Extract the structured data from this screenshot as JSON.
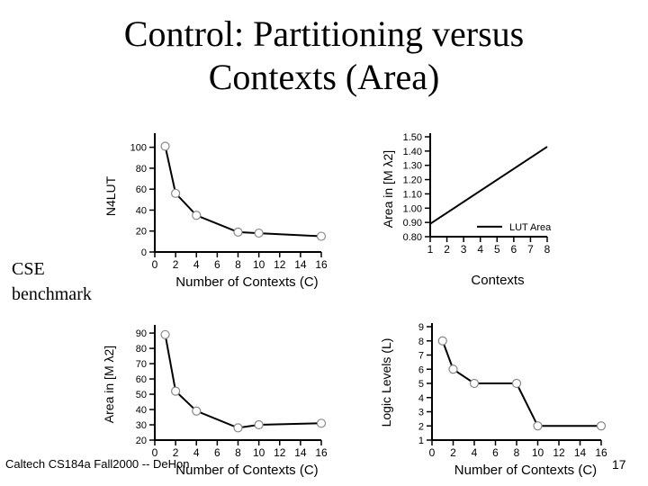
{
  "slide": {
    "title_line1": "Control: Partitioning versus",
    "title_line2": "Contexts (Area)",
    "side_label_line1": "CSE",
    "side_label_line2": "benchmark",
    "footer": "Caltech CS184a Fall2000 -- DeHon",
    "page_number": "17"
  },
  "chart_data": [
    {
      "type": "line",
      "ylabel": "N4LUT",
      "xlabel": "Number of Contexts (C)",
      "x_ticks": [
        "0",
        "2",
        "4",
        "6",
        "8",
        "10",
        "12",
        "14",
        "16"
      ],
      "y_ticks": [
        "0",
        "20",
        "40",
        "60",
        "80",
        "100"
      ],
      "xlim": [
        0,
        16
      ],
      "ylim": [
        0,
        110
      ],
      "markers": true,
      "series": [
        {
          "x": [
            1,
            2,
            4,
            8,
            10,
            16
          ],
          "y": [
            101,
            56,
            35,
            19,
            18,
            15
          ]
        }
      ]
    },
    {
      "type": "line",
      "ylabel": "Area in [M λ2]",
      "xlabel": "Contexts",
      "x_ticks": [
        "1",
        "2",
        "3",
        "4",
        "5",
        "6",
        "7",
        "8"
      ],
      "y_ticks": [
        "0.80",
        "0.90",
        "1.00",
        "1.10",
        "1.20",
        "1.30",
        "1.40",
        "1.50"
      ],
      "xlim": [
        1,
        8
      ],
      "ylim": [
        0.8,
        1.5
      ],
      "legend": "LUT Area",
      "legend_position": "right",
      "markers": false,
      "series": [
        {
          "name": "LUT Area",
          "x": [
            1,
            8
          ],
          "y": [
            0.89,
            1.43
          ]
        }
      ]
    },
    {
      "type": "line",
      "ylabel": "Area in [M λ2]",
      "xlabel": "Number of Contexts (C)",
      "x_ticks": [
        "0",
        "2",
        "4",
        "6",
        "8",
        "10",
        "12",
        "14",
        "16"
      ],
      "y_ticks": [
        "20",
        "30",
        "40",
        "50",
        "60",
        "70",
        "80",
        "90"
      ],
      "xlim": [
        0,
        16
      ],
      "ylim": [
        20,
        93
      ],
      "markers": true,
      "series": [
        {
          "x": [
            1,
            2,
            4,
            8,
            10,
            16
          ],
          "y": [
            89,
            52,
            39,
            28,
            30,
            31
          ]
        }
      ]
    },
    {
      "type": "line",
      "ylabel": "Logic Levels (L)",
      "xlabel": "Number of Contexts (C)",
      "x_ticks": [
        "0",
        "2",
        "4",
        "6",
        "8",
        "10",
        "12",
        "14",
        "16"
      ],
      "y_ticks": [
        "1",
        "2",
        "3",
        "4",
        "5",
        "6",
        "7",
        "8",
        "9"
      ],
      "xlim": [
        0,
        16
      ],
      "ylim": [
        1,
        9
      ],
      "markers": true,
      "series": [
        {
          "x": [
            1,
            2,
            4,
            8,
            10,
            16
          ],
          "y": [
            8,
            6,
            5,
            5,
            2,
            2
          ]
        }
      ]
    }
  ]
}
